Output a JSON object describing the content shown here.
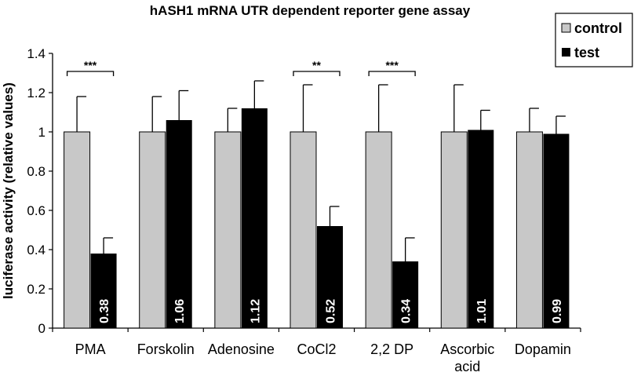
{
  "chart_data": {
    "type": "bar",
    "title": "hASH1 mRNA UTR dependent reporter gene assay",
    "xlabel": "",
    "ylabel": "luciferase activity (relative values)",
    "ylim": [
      0,
      1.4
    ],
    "yticks": [
      "0",
      "0.2",
      "0.4",
      "0.6",
      "0.8",
      "1",
      "1.2",
      "1.4"
    ],
    "categories": [
      [
        "PMA"
      ],
      [
        "Forskolin"
      ],
      [
        "Adenosine"
      ],
      [
        "CoCl2"
      ],
      [
        "2,2 DP"
      ],
      [
        "Ascorbic",
        "acid"
      ],
      [
        "Dopamin"
      ]
    ],
    "series": [
      {
        "name": "control",
        "color": "#c8c8c8",
        "values": [
          1,
          1,
          1,
          1,
          1,
          1,
          1
        ],
        "errors": [
          0.18,
          0.18,
          0.12,
          0.24,
          0.24,
          0.24,
          0.12
        ]
      },
      {
        "name": "test",
        "color": "#000000",
        "values": [
          0.38,
          1.06,
          1.12,
          0.52,
          0.34,
          1.01,
          0.99
        ],
        "errors": [
          0.08,
          0.15,
          0.14,
          0.1,
          0.12,
          0.1,
          0.09
        ],
        "labels": [
          "0.38",
          "1.06",
          "1.12",
          "0.52",
          "0.34",
          "1.01",
          "0.99"
        ]
      }
    ],
    "significance": [
      {
        "category": 0,
        "label": "***"
      },
      {
        "category": 3,
        "label": "**"
      },
      {
        "category": 4,
        "label": "***"
      }
    ],
    "legend_position": "top-right",
    "grid": false
  }
}
